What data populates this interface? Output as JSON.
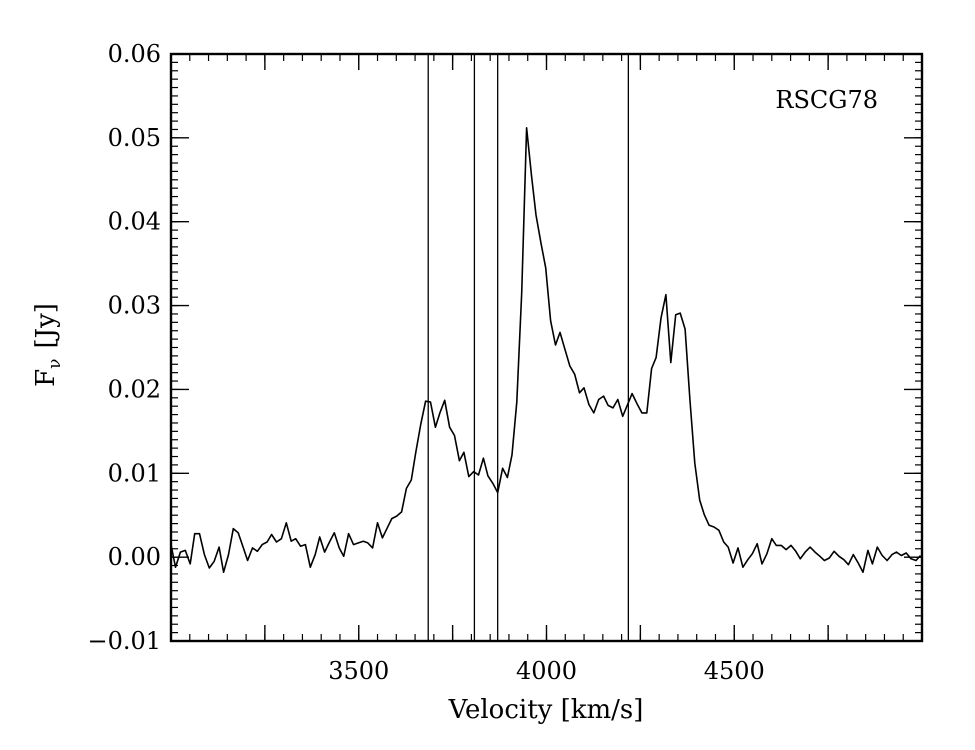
{
  "chart_data": {
    "type": "line",
    "title": "",
    "xlabel": "Velocity [km/s]",
    "ylabel": "Fν [Jy]",
    "ylabel_main": "F",
    "ylabel_sub": "ν",
    "ylabel_unit": "[Jy]",
    "xlim": [
      3000,
      5000
    ],
    "ylim": [
      -0.01,
      0.06
    ],
    "xticks": [
      3500,
      4000,
      4500
    ],
    "xtick_labels": [
      "3500",
      "4000",
      "4500"
    ],
    "yticks": [
      -0.01,
      0.0,
      0.01,
      0.02,
      0.03,
      0.04,
      0.05,
      0.06
    ],
    "ytick_labels": [
      "−0.01",
      "0.00",
      "0.01",
      "0.02",
      "0.03",
      "0.04",
      "0.05",
      "0.06"
    ],
    "annotation": "RSCG78",
    "vlines": [
      3685,
      3808,
      3870,
      4218
    ],
    "grid": false,
    "series": [
      {
        "color": "#000000",
        "x": [
          3000,
          3012,
          3025,
          3038,
          3051,
          3063,
          3076,
          3089,
          3102,
          3115,
          3128,
          3140,
          3153,
          3166,
          3179,
          3192,
          3204,
          3217,
          3230,
          3243,
          3256,
          3268,
          3281,
          3294,
          3307,
          3320,
          3332,
          3345,
          3358,
          3371,
          3384,
          3396,
          3409,
          3422,
          3435,
          3448,
          3460,
          3473,
          3486,
          3499,
          3512,
          3524,
          3537,
          3550,
          3563,
          3576,
          3588,
          3601,
          3614,
          3627,
          3640,
          3652,
          3665,
          3678,
          3691,
          3704,
          3716,
          3729,
          3742,
          3755,
          3768,
          3780,
          3793,
          3806,
          3819,
          3832,
          3844,
          3857,
          3870,
          3883,
          3896,
          3908,
          3921,
          3934,
          3947,
          3960,
          3972,
          3985,
          3998,
          4011,
          4024,
          4036,
          4049,
          4062,
          4075,
          4088,
          4100,
          4113,
          4126,
          4139,
          4152,
          4164,
          4177,
          4190,
          4203,
          4216,
          4228,
          4241,
          4254,
          4267,
          4280,
          4292,
          4305,
          4318,
          4331,
          4344,
          4356,
          4369,
          4382,
          4395,
          4408,
          4420,
          4433,
          4446,
          4459,
          4472,
          4484,
          4497,
          4510,
          4523,
          4536,
          4548,
          4561,
          4574,
          4587,
          4600,
          4612,
          4625,
          4638,
          4651,
          4664,
          4676,
          4689,
          4702,
          4715,
          4728,
          4740,
          4753,
          4766,
          4779,
          4792,
          4804,
          4817,
          4830,
          4843,
          4856,
          4868,
          4881,
          4894,
          4907,
          4920,
          4932,
          4945,
          4958,
          4971,
          4984,
          4996
        ],
        "y": [
          0.0015,
          -0.0012,
          0.0006,
          0.0008,
          -0.0008,
          0.0028,
          0.0028,
          0.0003,
          -0.0013,
          -0.0005,
          0.0012,
          -0.0018,
          0.0003,
          0.0034,
          0.0029,
          0.0012,
          -0.0004,
          0.0011,
          0.0007,
          0.0015,
          0.0018,
          0.0027,
          0.0018,
          0.0022,
          0.0041,
          0.0019,
          0.0022,
          0.0013,
          0.0015,
          -0.0012,
          0.0003,
          0.0024,
          0.0006,
          0.0018,
          0.0029,
          0.0011,
          0.0001,
          0.0028,
          0.0015,
          0.0017,
          0.0019,
          0.0017,
          0.0011,
          0.0041,
          0.0023,
          0.0035,
          0.0046,
          0.0049,
          0.0054,
          0.0082,
          0.0092,
          0.0125,
          0.0158,
          0.0186,
          0.0185,
          0.0155,
          0.0172,
          0.0187,
          0.0155,
          0.0145,
          0.0115,
          0.0125,
          0.0096,
          0.0102,
          0.0098,
          0.0118,
          0.0097,
          0.0088,
          0.0077,
          0.0106,
          0.0095,
          0.0122,
          0.0185,
          0.0315,
          0.0512,
          0.0455,
          0.0408,
          0.0375,
          0.0345,
          0.0282,
          0.0253,
          0.0268,
          0.0248,
          0.0228,
          0.0218,
          0.0196,
          0.0202,
          0.0182,
          0.0172,
          0.0188,
          0.0192,
          0.0181,
          0.0178,
          0.0188,
          0.0168,
          0.0182,
          0.0195,
          0.0183,
          0.0172,
          0.0172,
          0.0225,
          0.0238,
          0.0285,
          0.0313,
          0.0232,
          0.0289,
          0.0291,
          0.0272,
          0.0188,
          0.0112,
          0.0068,
          0.0051,
          0.0038,
          0.0036,
          0.0032,
          0.0018,
          0.0012,
          -0.0007,
          0.0011,
          -0.0012,
          -0.0003,
          0.0004,
          0.0016,
          -0.0008,
          0.0004,
          0.0022,
          0.0014,
          0.0014,
          0.0009,
          0.0014,
          0.0007,
          -0.0002,
          0.0006,
          0.0012,
          0.0006,
          0.0001,
          -0.0004,
          -0.0001,
          0.0007,
          0.0001,
          -0.0003,
          -0.0009,
          0.0003,
          -0.0007,
          -0.0018,
          0.0008,
          -0.0008,
          0.0012,
          0.0002,
          -0.0004,
          0.0003,
          0.0006,
          0.0002,
          0.0005,
          -0.0002,
          -0.0004,
          0.0002
        ]
      }
    ]
  }
}
